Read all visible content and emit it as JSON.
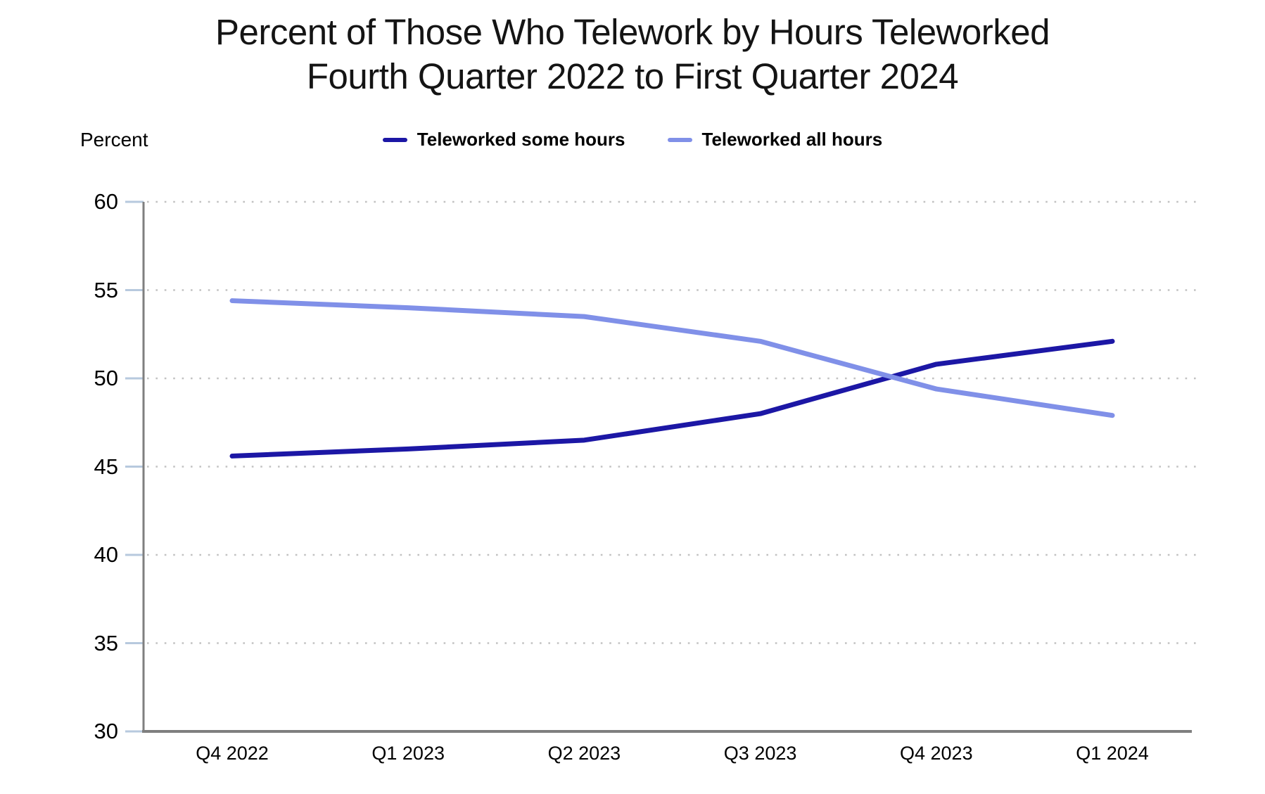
{
  "page": {
    "background": "#ffffff"
  },
  "chart_data": {
    "type": "line",
    "title_line1": "Percent of Those Who Telework by Hours Teleworked",
    "title_line2": "Fourth Quarter 2022 to First Quarter 2024",
    "ylabel": "Percent",
    "categories": [
      "Q4 2022",
      "Q1 2023",
      "Q2 2023",
      "Q3 2023",
      "Q4 2023",
      "Q1 2024"
    ],
    "series": [
      {
        "name": "Teleworked some hours",
        "color": "#1C17A5",
        "values": [
          45.6,
          46.0,
          46.5,
          48.0,
          50.8,
          52.1
        ]
      },
      {
        "name": "Teleworked all hours",
        "color": "#8090E8",
        "values": [
          54.4,
          54.0,
          53.5,
          52.1,
          49.4,
          47.9
        ]
      }
    ],
    "ylim": [
      30,
      60
    ],
    "ytick_step": 5,
    "ytick_labels": [
      "30",
      "35",
      "40",
      "45",
      "50",
      "55",
      "60"
    ],
    "grid": "horizontal dotted gridlines at each 5-unit tick, none at baseline",
    "legend_position": "top-center",
    "axis_color": "#7F7F7F",
    "tick_color": "#B7C9DE",
    "grid_color": "#C2C2C2"
  }
}
